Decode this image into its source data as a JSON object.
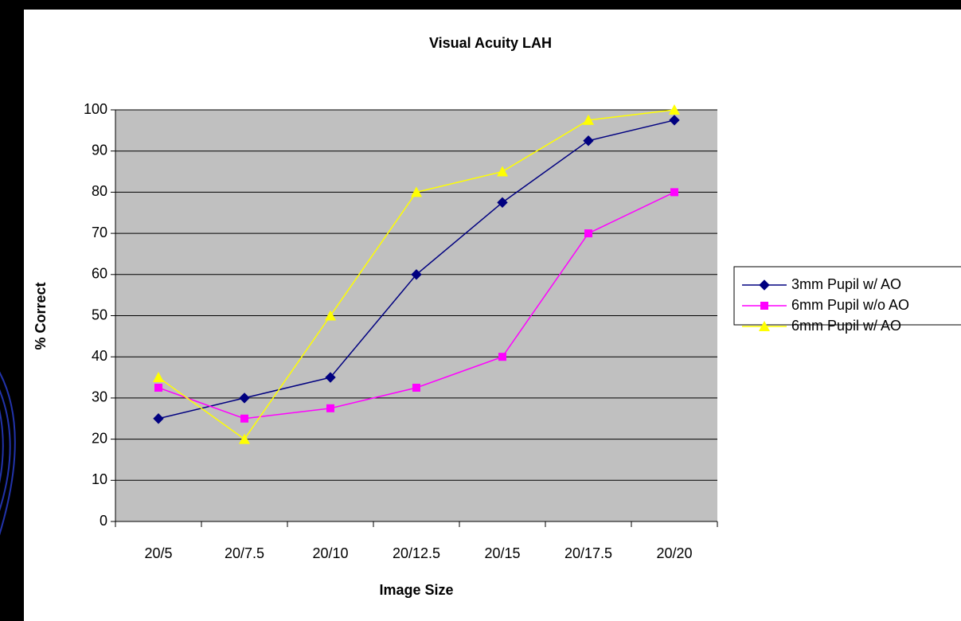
{
  "chart_data": {
    "type": "line",
    "title": "Visual Acuity LAH",
    "x_label": "Image Size",
    "y_label": "% Correct",
    "categories": [
      "20/5",
      "20/7.5",
      "20/10",
      "20/12.5",
      "20/15",
      "20/17.5",
      "20/20"
    ],
    "series": [
      {
        "name": "3mm Pupil w/ AO",
        "color": "#000080",
        "marker": "diamond",
        "values": [
          25,
          30,
          35,
          60,
          77.5,
          92.5,
          97.5
        ]
      },
      {
        "name": "6mm Pupil w/o AO",
        "color": "#ff00ff",
        "marker": "square",
        "values": [
          32.5,
          25,
          27.5,
          32.5,
          40,
          70,
          80
        ]
      },
      {
        "name": "6mm Pupil w/ AO",
        "color": "#ffff00",
        "marker": "triangle",
        "values": [
          35,
          20,
          50,
          80,
          85,
          97.5,
          100
        ]
      }
    ],
    "ylim": [
      0,
      100
    ],
    "yticks": [
      0,
      10,
      20,
      30,
      40,
      50,
      60,
      70,
      80,
      90,
      100
    ],
    "grid": true,
    "legend": "right"
  }
}
